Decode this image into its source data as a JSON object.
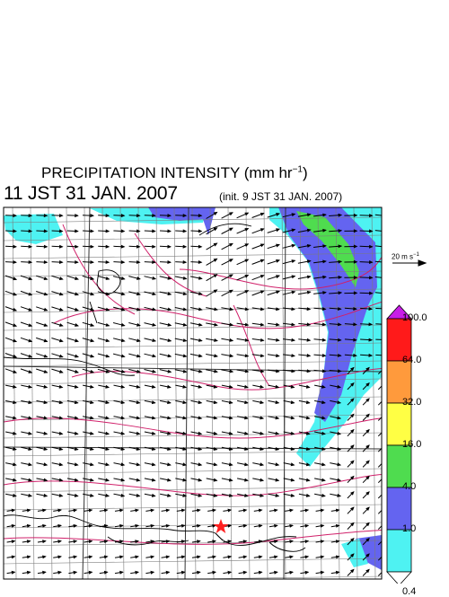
{
  "title": {
    "text": "PRECIPITATION INTENSITY (mm hr",
    "unit_sup": "−1",
    "close": ")"
  },
  "valid_time": "11 JST 31 JAN. 2007",
  "init_time": "(init. 9 JST 31 JAN. 2007)",
  "wind_reference": {
    "label": "20 m s",
    "sup": "−1"
  },
  "colorbar": {
    "levels": [
      "100.0",
      "64.0",
      "32.0",
      "16.0",
      "4.0",
      "1.0",
      "0.4"
    ],
    "colors": [
      "#ff1a1a",
      "#ff9a3c",
      "#ffff44",
      "#4fdc4f",
      "#6464f0",
      "#4ef2f2",
      "#ffffff"
    ],
    "over_color": "#c81ee6"
  },
  "map": {
    "marker": "red-star",
    "field_colors": {
      "light": "#4ef2f2",
      "moderate": "#6464f0",
      "heavy": "#4fdc4f"
    },
    "contour_color": "#d0206a"
  }
}
